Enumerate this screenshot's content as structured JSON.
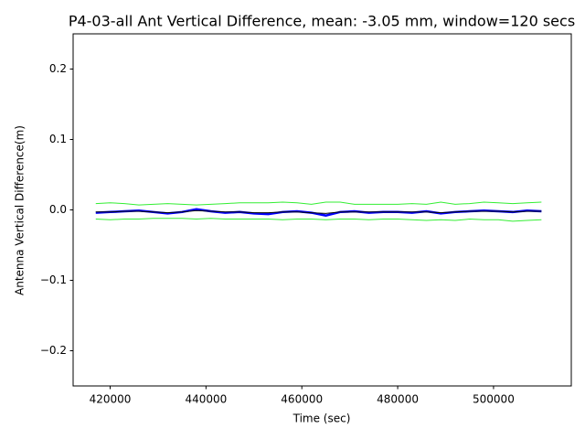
{
  "chart_data": {
    "type": "line",
    "title": "P4-03-all Ant Vertical Difference, mean: -3.05 mm, window=120 secs",
    "x_label": "Time (sec)",
    "y_label": "Antenna Vertical Difference(m)",
    "x": [
      417000,
      420000,
      423000,
      426000,
      429000,
      432000,
      435000,
      438000,
      441000,
      444000,
      447000,
      450000,
      453000,
      456000,
      459000,
      462000,
      465000,
      468000,
      471000,
      474000,
      477000,
      480000,
      483000,
      486000,
      489000,
      492000,
      495000,
      498000,
      501000,
      504000,
      507000,
      510000
    ],
    "series": [
      {
        "color": "#0000ff",
        "values": [
          -0.004,
          -0.003,
          -0.002,
          -0.001,
          -0.003,
          -0.005,
          -0.003,
          0.001,
          -0.002,
          -0.004,
          -0.003,
          -0.005,
          -0.006,
          -0.003,
          -0.002,
          -0.004,
          -0.008,
          -0.003,
          -0.002,
          -0.004,
          -0.003,
          -0.003,
          -0.004,
          -0.002,
          -0.005,
          -0.003,
          -0.002,
          -0.001,
          -0.002,
          -0.003,
          -0.001,
          -0.002
        ]
      },
      {
        "color": "#000000",
        "values": [
          -0.003,
          -0.003,
          -0.002,
          -0.002,
          -0.003,
          -0.004,
          -0.003,
          -0.001,
          -0.002,
          -0.003,
          -0.003,
          -0.004,
          -0.004,
          -0.003,
          -0.003,
          -0.004,
          -0.005,
          -0.003,
          -0.003,
          -0.003,
          -0.003,
          -0.003,
          -0.003,
          -0.003,
          -0.004,
          -0.003,
          -0.002,
          -0.002,
          -0.002,
          -0.003,
          -0.002,
          -0.002
        ]
      },
      {
        "color": "#33ee33",
        "values": [
          0.009,
          0.01,
          0.009,
          0.007,
          0.008,
          0.009,
          0.008,
          0.007,
          0.008,
          0.009,
          0.01,
          0.01,
          0.01,
          0.011,
          0.01,
          0.008,
          0.011,
          0.011,
          0.008,
          0.008,
          0.008,
          0.008,
          0.009,
          0.008,
          0.011,
          0.008,
          0.009,
          0.011,
          0.01,
          0.009,
          0.01,
          0.011
        ]
      },
      {
        "color": "#33ee33",
        "values": [
          -0.013,
          -0.014,
          -0.013,
          -0.013,
          -0.012,
          -0.012,
          -0.012,
          -0.013,
          -0.012,
          -0.013,
          -0.013,
          -0.013,
          -0.013,
          -0.014,
          -0.013,
          -0.013,
          -0.014,
          -0.013,
          -0.013,
          -0.014,
          -0.013,
          -0.013,
          -0.014,
          -0.015,
          -0.014,
          -0.015,
          -0.013,
          -0.014,
          -0.014,
          -0.016,
          -0.015,
          -0.014
        ]
      }
    ],
    "xlim": [
      412275,
      516225
    ],
    "xticks": [
      420000,
      440000,
      460000,
      480000,
      500000
    ],
    "ylim": [
      -0.25,
      0.25
    ],
    "yticks": [
      {
        "value": -0.2,
        "label": "−0.2"
      },
      {
        "value": -0.1,
        "label": "−0.1"
      },
      {
        "value": 0,
        "label": "0.0"
      },
      0.1,
      0.2
    ],
    "grid": false
  }
}
